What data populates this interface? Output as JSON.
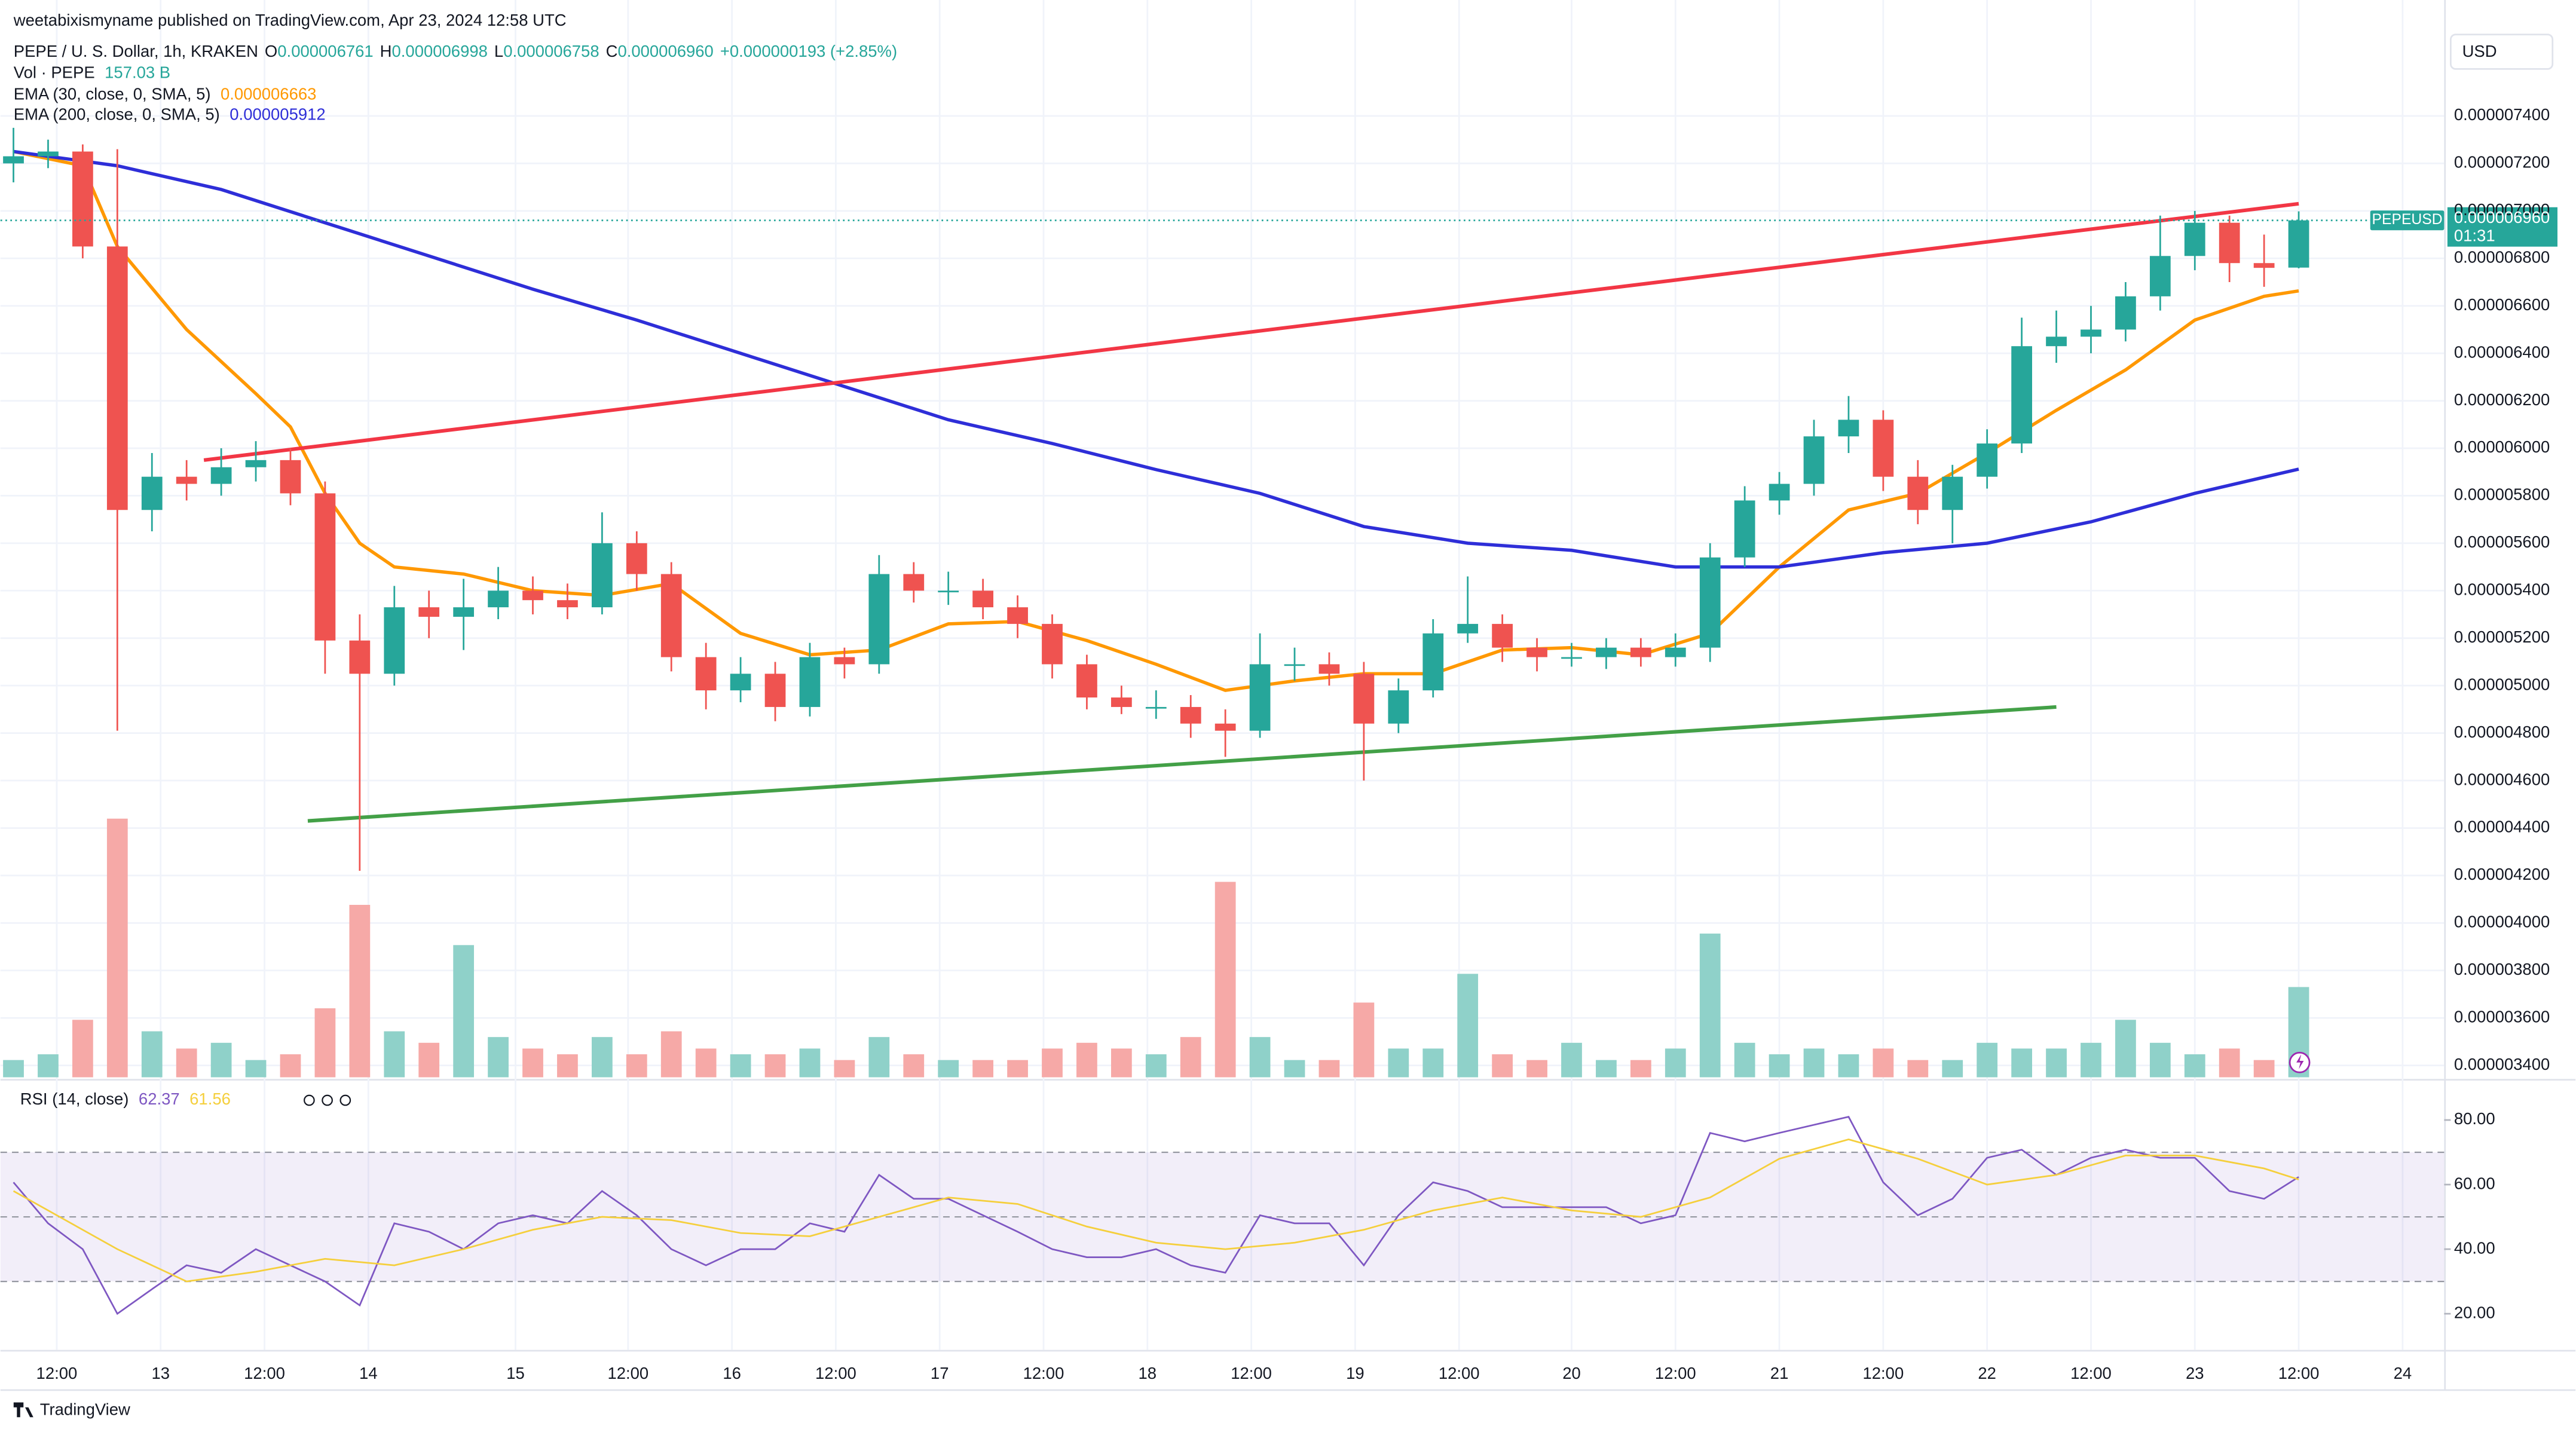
{
  "header": {
    "published": "weetabixismyname published on TradingView.com, Apr 23, 2024 12:58 UTC",
    "currency": "USD",
    "brand": "TradingView"
  },
  "chart_data": {
    "type": "candlestick",
    "legend": {
      "symbol": "PEPE / U. S. Dollar, 1h, KRAKEN",
      "ohlc": [
        {
          "key": "O",
          "value": "0.000006761"
        },
        {
          "key": "H",
          "value": "0.000006998"
        },
        {
          "key": "L",
          "value": "0.000006758"
        },
        {
          "key": "C",
          "value": "0.000006960"
        }
      ],
      "change": "+0.000000193 (+2.85%)"
    },
    "price_tag": {
      "symbol": "PEPEUSD",
      "price": "0.000006960",
      "countdown": "01:31"
    },
    "up_color": "#26a69a",
    "down_color": "#ef5350",
    "x": [
      0,
      4,
      8,
      12,
      16,
      20,
      24,
      28,
      32,
      36,
      40,
      44,
      48,
      52,
      56,
      60,
      64,
      68,
      72,
      76,
      80,
      84,
      88,
      92,
      96,
      100,
      104,
      108,
      112,
      116,
      120,
      124,
      128,
      132,
      136,
      140,
      144,
      148,
      152,
      156,
      160,
      164,
      168,
      172,
      176,
      180,
      184,
      188,
      192,
      196,
      200,
      204,
      208,
      212,
      216,
      220,
      224,
      228,
      232,
      236,
      240,
      244,
      248,
      252,
      256,
      260,
      264
    ],
    "open": [
      7.2e-06,
      7.23e-06,
      7.25e-06,
      6.85e-06,
      5.74e-06,
      5.88e-06,
      5.85e-06,
      5.92e-06,
      5.95e-06,
      5.81e-06,
      5.19e-06,
      5.05e-06,
      5.33e-06,
      5.29e-06,
      5.33e-06,
      5.4e-06,
      5.36e-06,
      5.33e-06,
      5.6e-06,
      5.47e-06,
      5.12e-06,
      4.98e-06,
      5.05e-06,
      4.91e-06,
      5.12e-06,
      5.09e-06,
      5.47e-06,
      5.4e-06,
      5.4e-06,
      5.33e-06,
      5.26e-06,
      5.09e-06,
      4.95e-06,
      4.91e-06,
      4.91e-06,
      4.84e-06,
      4.81e-06,
      5.09e-06,
      5.09e-06,
      5.05e-06,
      4.84e-06,
      4.98e-06,
      5.22e-06,
      5.26e-06,
      5.16e-06,
      5.12e-06,
      5.12e-06,
      5.16e-06,
      5.12e-06,
      5.16e-06,
      5.54e-06,
      5.78e-06,
      5.85e-06,
      6.05e-06,
      6.12e-06,
      5.88e-06,
      5.74e-06,
      5.88e-06,
      6.02e-06,
      6.43e-06,
      6.47e-06,
      6.5e-06,
      6.64e-06,
      6.81e-06,
      6.95e-06,
      6.78e-06,
      6.761e-06
    ],
    "high": [
      7.35e-06,
      7.3e-06,
      7.28e-06,
      7.26e-06,
      5.98e-06,
      5.95e-06,
      6e-06,
      6.03e-06,
      6e-06,
      5.86e-06,
      5.3e-06,
      5.42e-06,
      5.4e-06,
      5.45e-06,
      5.5e-06,
      5.46e-06,
      5.43e-06,
      5.73e-06,
      5.65e-06,
      5.52e-06,
      5.18e-06,
      5.12e-06,
      5.1e-06,
      5.18e-06,
      5.16e-06,
      5.55e-06,
      5.52e-06,
      5.48e-06,
      5.45e-06,
      5.38e-06,
      5.3e-06,
      5.13e-06,
      5e-06,
      4.98e-06,
      4.96e-06,
      4.9e-06,
      5.22e-06,
      5.16e-06,
      5.14e-06,
      5.1e-06,
      5.03e-06,
      5.28e-06,
      5.46e-06,
      5.3e-06,
      5.2e-06,
      5.18e-06,
      5.2e-06,
      5.2e-06,
      5.22e-06,
      5.6e-06,
      5.84e-06,
      5.9e-06,
      6.12e-06,
      6.22e-06,
      6.16e-06,
      5.95e-06,
      5.93e-06,
      6.08e-06,
      6.55e-06,
      6.58e-06,
      6.6e-06,
      6.7e-06,
      6.98e-06,
      7e-06,
      6.98e-06,
      6.9e-06,
      6.998e-06
    ],
    "low": [
      7.12e-06,
      7.18e-06,
      6.8e-06,
      4.81e-06,
      5.65e-06,
      5.78e-06,
      5.8e-06,
      5.86e-06,
      5.76e-06,
      5.05e-06,
      4.22e-06,
      5e-06,
      5.2e-06,
      5.15e-06,
      5.28e-06,
      5.3e-06,
      5.28e-06,
      5.3e-06,
      5.4e-06,
      5.06e-06,
      4.9e-06,
      4.93e-06,
      4.85e-06,
      4.87e-06,
      5.03e-06,
      5.05e-06,
      5.35e-06,
      5.34e-06,
      5.28e-06,
      5.2e-06,
      5.03e-06,
      4.9e-06,
      4.88e-06,
      4.86e-06,
      4.78e-06,
      4.7e-06,
      4.78e-06,
      5.02e-06,
      5e-06,
      4.6e-06,
      4.8e-06,
      4.95e-06,
      5.18e-06,
      5.1e-06,
      5.06e-06,
      5.08e-06,
      5.07e-06,
      5.08e-06,
      5.08e-06,
      5.1e-06,
      5.5e-06,
      5.72e-06,
      5.8e-06,
      5.98e-06,
      5.82e-06,
      5.68e-06,
      5.6e-06,
      5.83e-06,
      5.98e-06,
      6.36e-06,
      6.4e-06,
      6.45e-06,
      6.58e-06,
      6.75e-06,
      6.7e-06,
      6.68e-06,
      6.758e-06
    ],
    "close": [
      7.23e-06,
      7.25e-06,
      6.85e-06,
      5.74e-06,
      5.88e-06,
      5.85e-06,
      5.92e-06,
      5.95e-06,
      5.81e-06,
      5.19e-06,
      5.05e-06,
      5.33e-06,
      5.29e-06,
      5.33e-06,
      5.4e-06,
      5.36e-06,
      5.33e-06,
      5.6e-06,
      5.47e-06,
      5.12e-06,
      4.98e-06,
      5.05e-06,
      4.91e-06,
      5.12e-06,
      5.09e-06,
      5.47e-06,
      5.4e-06,
      5.4e-06,
      5.33e-06,
      5.26e-06,
      5.09e-06,
      4.95e-06,
      4.91e-06,
      4.91e-06,
      4.84e-06,
      4.81e-06,
      5.09e-06,
      5.09e-06,
      5.05e-06,
      4.84e-06,
      4.98e-06,
      5.22e-06,
      5.26e-06,
      5.16e-06,
      5.12e-06,
      5.12e-06,
      5.16e-06,
      5.12e-06,
      5.16e-06,
      5.54e-06,
      5.78e-06,
      5.85e-06,
      6.05e-06,
      6.12e-06,
      5.88e-06,
      5.74e-06,
      5.88e-06,
      6.02e-06,
      6.43e-06,
      6.47e-06,
      6.5e-06,
      6.64e-06,
      6.81e-06,
      6.95e-06,
      6.78e-06,
      6.76e-06,
      6.96e-06
    ],
    "volume": {
      "name": "Vol · PEPE",
      "last_label": "157.03 B",
      "color": "#26a69a",
      "values": [
        30,
        40,
        100,
        450,
        80,
        50,
        60,
        30,
        40,
        120,
        300,
        80,
        60,
        230,
        70,
        50,
        40,
        70,
        40,
        80,
        50,
        40,
        40,
        50,
        30,
        70,
        40,
        30,
        30,
        30,
        50,
        60,
        50,
        40,
        70,
        340,
        70,
        30,
        30,
        130,
        50,
        50,
        180,
        40,
        30,
        60,
        30,
        30,
        50,
        250,
        60,
        40,
        50,
        40,
        50,
        30,
        30,
        60,
        50,
        50,
        60,
        100,
        60,
        40,
        50,
        30,
        157.03
      ],
      "vlim": [
        0,
        500
      ],
      "up_color": "#8fd1c9",
      "down_color": "#f6a9a7"
    },
    "series": [
      {
        "name": "EMA (30, close, 0, SMA, 5)",
        "color": "#ff9800",
        "last_label": "0.000006663",
        "x": [
          0,
          8,
          12,
          20,
          28,
          32,
          36,
          40,
          44,
          52,
          60,
          68,
          76,
          84,
          92,
          100,
          108,
          116,
          124,
          132,
          140,
          148,
          156,
          164,
          172,
          180,
          188,
          196,
          204,
          212,
          220,
          228,
          236,
          244,
          252,
          260,
          264
        ],
        "values": [
          7.25e-06,
          7.19e-06,
          6.85e-06,
          6.5e-06,
          6.23e-06,
          6.09e-06,
          5.81e-06,
          5.6e-06,
          5.5e-06,
          5.47e-06,
          5.4e-06,
          5.38e-06,
          5.43e-06,
          5.22e-06,
          5.13e-06,
          5.15e-06,
          5.26e-06,
          5.27e-06,
          5.19e-06,
          5.09e-06,
          4.98e-06,
          5.02e-06,
          5.05e-06,
          5.05e-06,
          5.15e-06,
          5.16e-06,
          5.13e-06,
          5.22e-06,
          5.5e-06,
          5.74e-06,
          5.81e-06,
          5.98e-06,
          6.16e-06,
          6.33e-06,
          6.54e-06,
          6.64e-06,
          6.663e-06
        ]
      },
      {
        "name": "EMA (200, close, 0, SMA, 5)",
        "color": "#2e2ed8",
        "last_label": "0.000005912",
        "x": [
          0,
          12,
          24,
          36,
          48,
          60,
          72,
          84,
          96,
          108,
          120,
          132,
          144,
          156,
          168,
          180,
          192,
          204,
          216,
          228,
          240,
          252,
          264
        ],
        "values": [
          7.25e-06,
          7.19e-06,
          7.09e-06,
          6.95e-06,
          6.81e-06,
          6.67e-06,
          6.54e-06,
          6.4e-06,
          6.26e-06,
          6.12e-06,
          6.02e-06,
          5.91e-06,
          5.81e-06,
          5.67e-06,
          5.6e-06,
          5.57e-06,
          5.5e-06,
          5.5e-06,
          5.56e-06,
          5.6e-06,
          5.69e-06,
          5.81e-06,
          5.912e-06
        ]
      }
    ],
    "trendlines": [
      {
        "color": "#f23645",
        "x": [
          22,
          264
        ],
        "values": [
          5.95e-06,
          7.03e-06
        ]
      },
      {
        "color": "#43a047",
        "x": [
          34,
          236
        ],
        "values": [
          4.43e-06,
          4.91e-06
        ]
      }
    ],
    "xlim": [
      -1.5,
      280.8
    ],
    "xticks": [
      {
        "value": 5,
        "label": "12:00"
      },
      {
        "value": 17,
        "label": "13"
      },
      {
        "value": 29,
        "label": "12:00"
      },
      {
        "value": 41,
        "label": "14"
      },
      {
        "value": 58,
        "label": "15"
      },
      {
        "value": 71,
        "label": "12:00"
      },
      {
        "value": 83,
        "label": "16"
      },
      {
        "value": 95,
        "label": "12:00"
      },
      {
        "value": 107,
        "label": "17"
      },
      {
        "value": 119,
        "label": "12:00"
      },
      {
        "value": 131,
        "label": "18"
      },
      {
        "value": 143,
        "label": "12:00"
      },
      {
        "value": 155,
        "label": "19"
      },
      {
        "value": 167,
        "label": "12:00"
      },
      {
        "value": 180,
        "label": "20"
      },
      {
        "value": 192,
        "label": "12:00"
      },
      {
        "value": 204,
        "label": "21"
      },
      {
        "value": 216,
        "label": "12:00"
      },
      {
        "value": 228,
        "label": "22"
      },
      {
        "value": 240,
        "label": "12:00"
      },
      {
        "value": 252,
        "label": "23"
      },
      {
        "value": 264,
        "label": "12:00"
      },
      {
        "value": 276,
        "label": "24"
      }
    ],
    "ylim": [
      3.35e-06,
      7.75e-06
    ],
    "yticks": [
      {
        "value": 3.4e-06,
        "label": "0.000003400"
      },
      {
        "value": 3.6e-06,
        "label": "0.000003600"
      },
      {
        "value": 3.8e-06,
        "label": "0.000003800"
      },
      {
        "value": 4e-06,
        "label": "0.000004000"
      },
      {
        "value": 4.2e-06,
        "label": "0.000004200"
      },
      {
        "value": 4.4e-06,
        "label": "0.000004400"
      },
      {
        "value": 4.6e-06,
        "label": "0.000004600"
      },
      {
        "value": 4.8e-06,
        "label": "0.000004800"
      },
      {
        "value": 5e-06,
        "label": "0.000005000"
      },
      {
        "value": 5.2e-06,
        "label": "0.000005200"
      },
      {
        "value": 5.4e-06,
        "label": "0.000005400"
      },
      {
        "value": 5.6e-06,
        "label": "0.000005600"
      },
      {
        "value": 5.8e-06,
        "label": "0.000005800"
      },
      {
        "value": 6e-06,
        "label": "0.000006000"
      },
      {
        "value": 6.2e-06,
        "label": "0.000006200"
      },
      {
        "value": 6.4e-06,
        "label": "0.000006400"
      },
      {
        "value": 6.6e-06,
        "label": "0.000006600"
      },
      {
        "value": 6.8e-06,
        "label": "0.000006800"
      },
      {
        "value": 7e-06,
        "label": "0.000007000"
      },
      {
        "value": 7.2e-06,
        "label": "0.000007200"
      },
      {
        "value": 7.4e-06,
        "label": "0.000007400"
      }
    ],
    "grid": true,
    "rsi": {
      "name": "RSI (14, close)",
      "color": "#7e57c2",
      "last_label": "62.37",
      "x": [
        0,
        4,
        8,
        12,
        16,
        20,
        24,
        28,
        32,
        36,
        40,
        44,
        48,
        52,
        56,
        60,
        64,
        68,
        72,
        76,
        80,
        84,
        88,
        92,
        96,
        100,
        104,
        108,
        112,
        116,
        120,
        124,
        128,
        132,
        136,
        140,
        144,
        148,
        152,
        156,
        160,
        164,
        168,
        172,
        176,
        180,
        184,
        188,
        192,
        196,
        200,
        204,
        208,
        212,
        216,
        220,
        224,
        228,
        232,
        236,
        240,
        244,
        248,
        252,
        256,
        260,
        264
      ],
      "values": [
        60.7,
        48,
        40,
        20,
        27.6,
        35,
        32.7,
        40,
        35,
        30,
        22.6,
        48,
        45.4,
        40,
        48,
        50.5,
        48,
        58,
        50.5,
        40,
        35,
        40,
        40,
        48,
        45.4,
        63,
        55.6,
        55.6,
        50.5,
        45.4,
        40,
        37.5,
        37.5,
        40,
        35,
        32.7,
        50.5,
        48,
        48,
        35,
        50.5,
        60.7,
        58,
        53,
        53,
        53,
        53,
        48,
        50.5,
        76,
        73.4,
        76,
        78.5,
        81,
        60.7,
        50.5,
        55.6,
        68.3,
        70.8,
        63,
        68.3,
        70.8,
        68.3,
        68.3,
        58,
        55.6,
        62.37
      ],
      "ma": {
        "color": "#f5cf3c",
        "last_label": "61.56",
        "x": [
          0,
          12,
          20,
          28,
          36,
          44,
          52,
          60,
          68,
          76,
          84,
          92,
          100,
          108,
          116,
          124,
          132,
          140,
          148,
          156,
          164,
          172,
          180,
          188,
          196,
          204,
          212,
          220,
          228,
          236,
          244,
          252,
          260,
          264
        ],
        "values": [
          58,
          40,
          30,
          33,
          37,
          35,
          40,
          46,
          50,
          49,
          45,
          44,
          50,
          56,
          54,
          47,
          42,
          40,
          42,
          46,
          52,
          56,
          52,
          50,
          56,
          68,
          74,
          68,
          60,
          63,
          69,
          69,
          65,
          61.56
        ]
      },
      "bands": [
        30,
        50,
        70
      ],
      "ylim": [
        8.8,
        91.2
      ],
      "yticks": [
        {
          "value": 20,
          "label": "20.00"
        },
        {
          "value": 40,
          "label": "40.00"
        },
        {
          "value": 60,
          "label": "60.00"
        },
        {
          "value": 80,
          "label": "80.00"
        }
      ]
    }
  }
}
